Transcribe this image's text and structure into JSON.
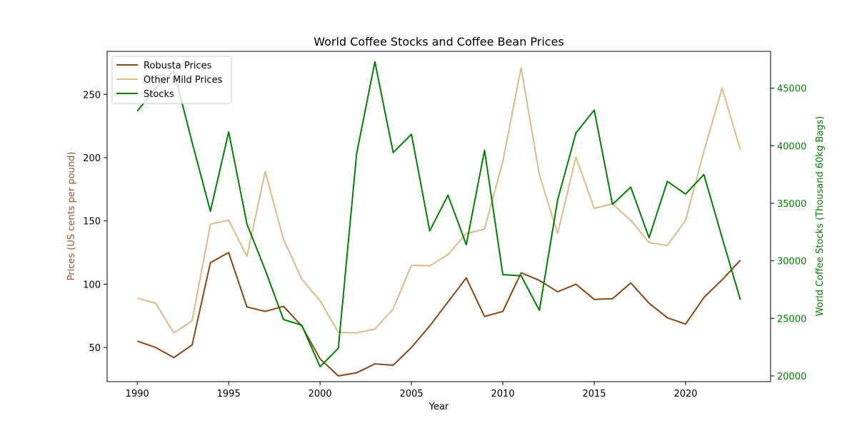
{
  "chart_data": {
    "type": "line",
    "title": "World Coffee Stocks and Coffee Bean Prices",
    "xlabel": "Year",
    "ylabel_left": "Prices (US cents per pound)",
    "ylabel_right": "World Coffee Stocks (Thousand 60kg Bags)",
    "x": [
      1990,
      1991,
      1992,
      1993,
      1994,
      1995,
      1996,
      1997,
      1998,
      1999,
      2000,
      2001,
      2002,
      2003,
      2004,
      2005,
      2006,
      2007,
      2008,
      2009,
      2010,
      2011,
      2012,
      2013,
      2014,
      2015,
      2016,
      2017,
      2018,
      2019,
      2020,
      2021,
      2022,
      2023
    ],
    "xticks": [
      "1990",
      "1995",
      "2000",
      "2005",
      "2010",
      "2015",
      "2020"
    ],
    "xlim": [
      1988.35,
      2024.65
    ],
    "ylim_left": [
      23,
      284
    ],
    "ylim_right": [
      19500,
      48200
    ],
    "yticks_left": [
      "50",
      "100",
      "150",
      "200",
      "250"
    ],
    "yticks_right": [
      "20000",
      "25000",
      "30000",
      "35000",
      "40000",
      "45000"
    ],
    "grid": false,
    "legend_position": "upper left",
    "series": [
      {
        "name": "Robusta Prices",
        "axis": "left",
        "color": "#8b4513",
        "values": [
          55,
          50,
          42,
          52,
          117,
          125,
          82,
          78.5,
          82.5,
          67,
          41,
          27.5,
          30,
          37,
          36,
          50,
          67,
          86,
          105,
          74.5,
          78.5,
          109,
          103,
          94,
          100,
          88,
          88.5,
          101,
          85,
          73.5,
          68.5,
          89.5,
          103.5,
          119
        ]
      },
      {
        "name": "Other Mild Prices",
        "axis": "left",
        "color": "#deb887",
        "values": [
          89,
          85,
          61.5,
          71,
          147.5,
          150.5,
          122,
          189,
          135.5,
          104,
          87,
          62,
          61.5,
          64.5,
          80.5,
          115,
          114.5,
          123.5,
          140,
          143.5,
          197,
          271,
          186.5,
          140,
          200.5,
          160,
          163.5,
          150.5,
          133,
          130.5,
          150.5,
          205,
          255,
          206
        ]
      },
      {
        "name": "Stocks",
        "axis": "right",
        "color": "#008000",
        "values": [
          43000,
          45000,
          46500,
          40300,
          34300,
          41200,
          33200,
          29200,
          24900,
          24400,
          20800,
          22400,
          39300,
          47300,
          39400,
          41000,
          32600,
          35700,
          31400,
          39600,
          28800,
          28700,
          25700,
          35300,
          41100,
          43100,
          34900,
          36400,
          32000,
          36900,
          35800,
          37500,
          32000,
          26600
        ]
      }
    ]
  }
}
